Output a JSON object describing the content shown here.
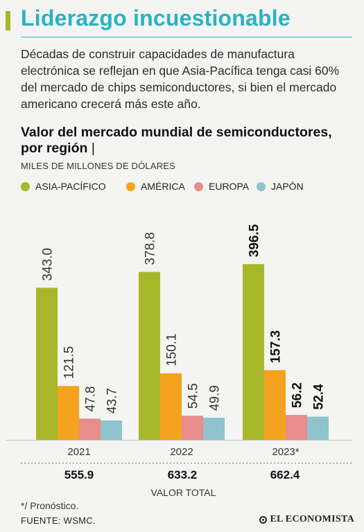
{
  "header": {
    "title": "Liderazgo incuestionable",
    "intro": "Décadas de construir capacidades de manufactura electrónica se reflejan en que Asia-Pacífica tenga casi 60% del mercado de chips semiconductores, si bien el mercado americano crecerá más este año."
  },
  "colors": {
    "title": "#27b3c6",
    "accent": "#a8b72a"
  },
  "chart_data": {
    "type": "bar",
    "title": "Valor del mercado mundial de semiconductores, por región",
    "title_suffix": "|",
    "ylabel": "MILES DE MILLONES DE DÓLARES",
    "categories": [
      "2021",
      "2022",
      "2023*"
    ],
    "ylim": [
      0,
      400
    ],
    "grid": false,
    "legend_position": "top",
    "series": [
      {
        "name": "ASIA-PACÍFICO",
        "color": "#a8b72a",
        "values": [
          343.0,
          378.8,
          396.5
        ],
        "labels": [
          "343.0",
          "378.8",
          "396.5"
        ]
      },
      {
        "name": "AMÉRICA",
        "color": "#f5a21f",
        "values": [
          121.5,
          150.1,
          157.3
        ],
        "labels": [
          "121.5",
          "150.1",
          "157.3"
        ]
      },
      {
        "name": "EUROPA",
        "color": "#e98c8c",
        "values": [
          47.8,
          54.5,
          56.2
        ],
        "labels": [
          "47.8",
          "54.5",
          "56.2"
        ]
      },
      {
        "name": "JAPÓN",
        "color": "#8fc3ce",
        "values": [
          43.7,
          49.9,
          52.4
        ],
        "labels": [
          "43.7",
          "49.9",
          "52.4"
        ]
      }
    ],
    "highlight_category_index": 2,
    "totals": [
      "555.9",
      "633.2",
      "662.4"
    ],
    "totals_label": "VALOR TOTAL"
  },
  "footer": {
    "note": "*/ Pronóstico.",
    "source": "FUENTE: WSMC.",
    "brand": "EL ECONOMISTA"
  }
}
